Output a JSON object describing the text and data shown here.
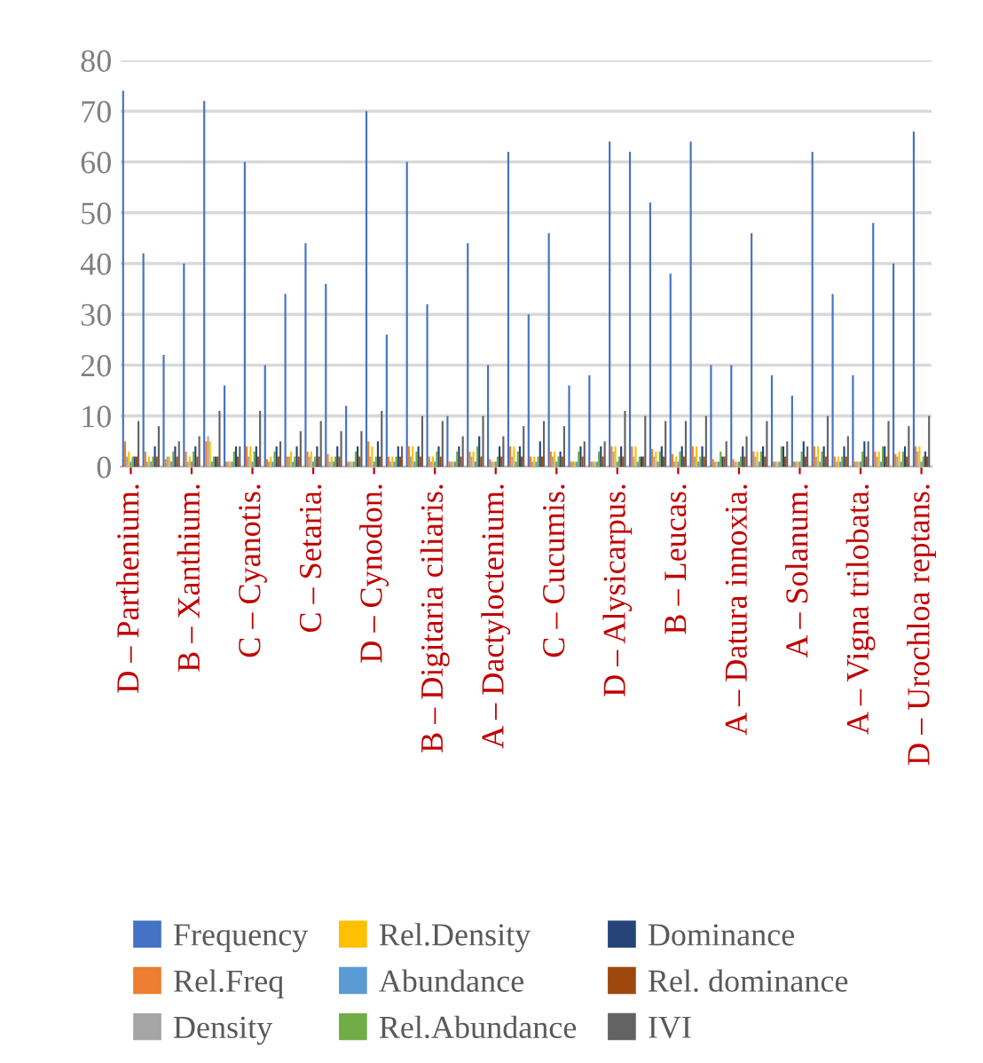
{
  "chart_data": {
    "type": "bar",
    "categories": [
      "D – Parthenium.",
      null,
      null,
      "B – Xanthium.",
      null,
      null,
      "C – Cyanotis.",
      null,
      null,
      "C – Setaria.",
      null,
      null,
      "D – Cynodon.",
      null,
      null,
      "B – Digitaria ciliaris.",
      null,
      null,
      "A – Dactyloctenium.",
      null,
      null,
      "C – Cucumis.",
      null,
      null,
      "D – Alysicarpus.",
      null,
      null,
      "B – Leucas.",
      null,
      null,
      "A – Datura innoxia.",
      null,
      null,
      "A – Solanum.",
      null,
      null,
      "A – Vigna trilobata.",
      null,
      null,
      "D – Urochloa reptans."
    ],
    "series": [
      {
        "name": "Frequency",
        "color": "#4472c4",
        "values": [
          74,
          42,
          22,
          40,
          72,
          16,
          60,
          20,
          34,
          44,
          36,
          12,
          70,
          26,
          60,
          32,
          10,
          44,
          20,
          62,
          30,
          46,
          16,
          18,
          64,
          62,
          52,
          38,
          64,
          20,
          20,
          46,
          18,
          14,
          62,
          34,
          18,
          48,
          40,
          66
        ]
      },
      {
        "name": "Rel.Freq",
        "color": "#ed7d31",
        "values": [
          5,
          3,
          1.5,
          3,
          5,
          1,
          4,
          1.5,
          2,
          3,
          2.5,
          1,
          5,
          2,
          4,
          2,
          1,
          3,
          1.5,
          4,
          2,
          3,
          1,
          1,
          4,
          4,
          3.5,
          2.5,
          4,
          1.5,
          1.5,
          3,
          1,
          1,
          4,
          2,
          1,
          3,
          2.5,
          4
        ]
      },
      {
        "name": "Density",
        "color": "#a5a5a5",
        "values": [
          2,
          1,
          2,
          1,
          6,
          1,
          2,
          1,
          2,
          2,
          1,
          1,
          2,
          1,
          2,
          1,
          1,
          2,
          1,
          2,
          1,
          2,
          1,
          1,
          3,
          2,
          2,
          1,
          2,
          1,
          1,
          2,
          1,
          1,
          2,
          1,
          1,
          2,
          2,
          3
        ]
      },
      {
        "name": "Rel.Density",
        "color": "#ffc000",
        "values": [
          3,
          2,
          2,
          2,
          5,
          1,
          4,
          2,
          3,
          3,
          2,
          1,
          4,
          2,
          4,
          2,
          1,
          3,
          1,
          4,
          2,
          3,
          1,
          1,
          4,
          4,
          3,
          2,
          4,
          1,
          1,
          3,
          1,
          1,
          4,
          2,
          1,
          3,
          3,
          4
        ]
      },
      {
        "name": "Abundance",
        "color": "#5b9bd5",
        "values": [
          1,
          1,
          1,
          1,
          1,
          1,
          1,
          1,
          1,
          1,
          1,
          1,
          1,
          1,
          1,
          1,
          1,
          1,
          1,
          1,
          1,
          1,
          1,
          1,
          1,
          1,
          1,
          1,
          1,
          1,
          1,
          1,
          1,
          1,
          1,
          1,
          1,
          1,
          1,
          1
        ]
      },
      {
        "name": "Rel.Abundance",
        "color": "#70ad47",
        "values": [
          2,
          2,
          3,
          3,
          2,
          3,
          3,
          3,
          2,
          2,
          2,
          3,
          2,
          2,
          3,
          3,
          3,
          4,
          2,
          3,
          2,
          2,
          3,
          3,
          2,
          2,
          3,
          3,
          2,
          3,
          2,
          3,
          4,
          3,
          3,
          2,
          3,
          4,
          3,
          2
        ]
      },
      {
        "name": "Dominance",
        "color": "#264478",
        "values": [
          2,
          4,
          4,
          4,
          2,
          4,
          4,
          4,
          4,
          4,
          4,
          4,
          5,
          4,
          4,
          4,
          4,
          6,
          4,
          4,
          5,
          3,
          4,
          4,
          4,
          2,
          4,
          4,
          4,
          2,
          4,
          4,
          4,
          5,
          4,
          4,
          5,
          4,
          4,
          3
        ]
      },
      {
        "name": "Rel. dominance",
        "color": "#9e480e",
        "values": [
          2,
          2,
          2,
          2,
          2,
          2,
          2,
          2,
          2,
          2,
          2,
          2,
          2,
          2,
          2,
          2,
          2,
          2,
          2,
          2,
          2,
          2,
          2,
          2,
          2,
          2,
          2,
          2,
          2,
          2,
          2,
          2,
          2,
          2,
          2,
          2,
          2,
          2,
          2,
          2
        ]
      },
      {
        "name": "IVI",
        "color": "#636363",
        "values": [
          9,
          8,
          5,
          6,
          11,
          4,
          11,
          5,
          7,
          9,
          7,
          7,
          11,
          4,
          10,
          9,
          6,
          10,
          6,
          8,
          9,
          8,
          5,
          5,
          11,
          10,
          9,
          9,
          10,
          5,
          6,
          9,
          5,
          4,
          10,
          6,
          5,
          9,
          8,
          10
        ]
      }
    ],
    "ylim": [
      0,
      80
    ],
    "yticks": [
      0,
      10,
      20,
      30,
      40,
      50,
      60,
      70,
      80
    ],
    "grid": "y",
    "legend": "bottom"
  }
}
